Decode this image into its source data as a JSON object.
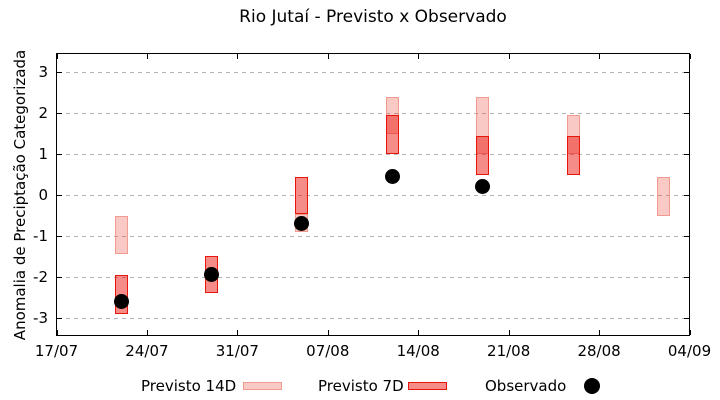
{
  "ui": {
    "title": "Rio Jutaí - Previsto x Observado",
    "ylabel": "Anomalia de Preciptação Categorizada",
    "legend": {
      "previsto_14d": "Previsto 14D",
      "previsto_7d": "Previsto 7D",
      "observado": "Observado"
    }
  },
  "colors": {
    "box_14d_fill": "rgba(235,60,45,0.28)",
    "box_14d_border": "#f09a90",
    "box_7d_fill": "rgba(235,25,15,0.5)",
    "box_7d_border": "#e8150c",
    "observed": "#000000",
    "grid": "#b3b3b3",
    "axis": "#000000"
  },
  "chart_data": {
    "type": "bar",
    "subtype": "floating-range-forecast-boxes-with-observed-dots",
    "title": "Rio Jutaí - Previsto x Observado",
    "xlabel": "",
    "ylabel": "Anomalia de Preciptação Categorizada",
    "ylim": [
      -3.42,
      3.45
    ],
    "grid": "horizontal-dashed",
    "legend_position": "below-plot",
    "series_legend": [
      "Previsto 14D",
      "Previsto 7D",
      "Observado"
    ],
    "x_axis_days_total": 49,
    "x_ticks": [
      {
        "label": "17/07",
        "day": 0
      },
      {
        "label": "24/07",
        "day": 7
      },
      {
        "label": "31/07",
        "day": 14
      },
      {
        "label": "07/08",
        "day": 21
      },
      {
        "label": "14/08",
        "day": 28
      },
      {
        "label": "21/08",
        "day": 35
      },
      {
        "label": "28/08",
        "day": 42
      },
      {
        "label": "04/09",
        "day": 49
      }
    ],
    "y_ticks": [
      3,
      2,
      1,
      0,
      -1,
      -2,
      -3
    ],
    "groups": [
      {
        "date": "22/07",
        "day": 5,
        "previsto_14d": [
          -1.45,
          -0.5
        ],
        "previsto_7d": [
          -2.9,
          -1.95
        ],
        "observado": -2.6
      },
      {
        "date": "29/07",
        "day": 12,
        "previsto_14d": null,
        "previsto_7d": [
          -2.4,
          -1.5
        ],
        "observado": -1.95
      },
      {
        "date": "05/08",
        "day": 19,
        "previsto_14d": [
          -0.9,
          -0.45
        ],
        "previsto_7d": [
          -0.45,
          0.45
        ],
        "observado": -0.7
      },
      {
        "date": "12/08",
        "day": 26,
        "previsto_14d": [
          1.5,
          2.4
        ],
        "previsto_7d": [
          1.0,
          1.95
        ],
        "observado": 0.45
      },
      {
        "date": "19/08",
        "day": 33,
        "previsto_14d": [
          1.0,
          2.4
        ],
        "previsto_7d": [
          0.5,
          1.45
        ],
        "observado": 0.2
      },
      {
        "date": "26/08",
        "day": 40,
        "previsto_14d": [
          1.0,
          1.95
        ],
        "previsto_7d": [
          0.5,
          1.45
        ],
        "observado": null
      },
      {
        "date": "02/09",
        "day": 47,
        "previsto_14d": [
          -0.5,
          0.45
        ],
        "previsto_7d": null,
        "observado": null
      }
    ]
  }
}
